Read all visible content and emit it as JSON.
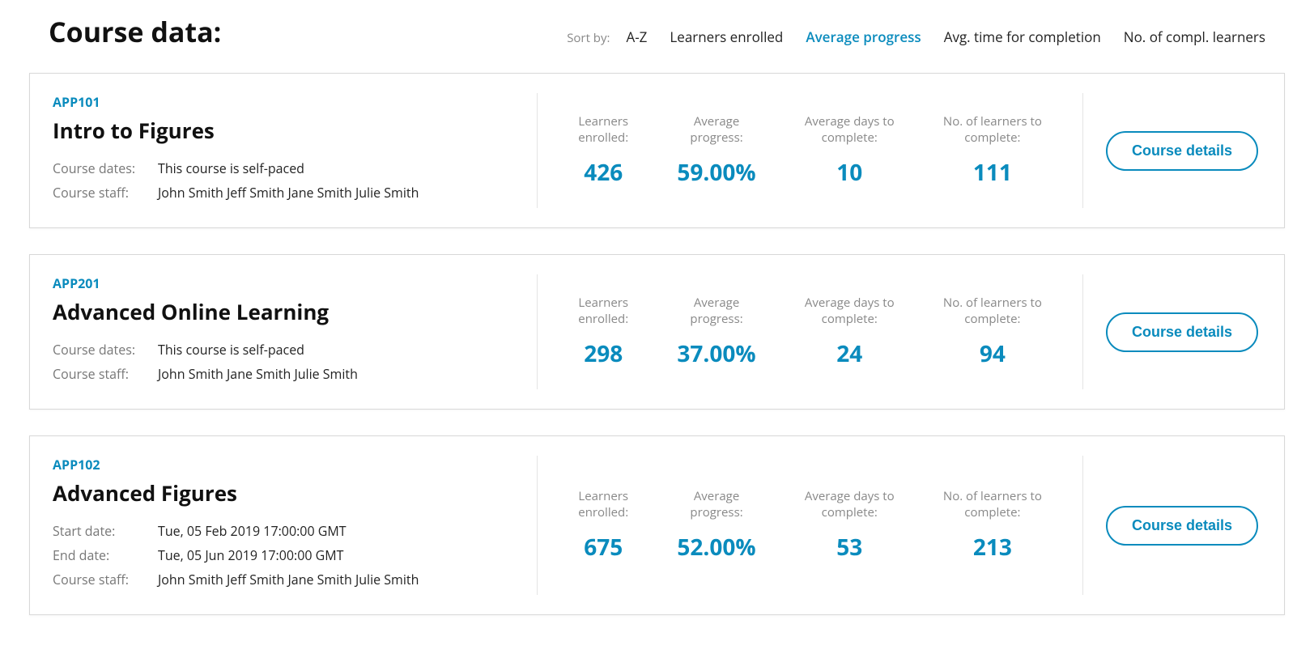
{
  "colors": {
    "accent": "#0a8bbd",
    "text": "#222222",
    "muted": "#888888",
    "border": "#d8d8d8"
  },
  "header": {
    "title": "Course data:",
    "sort_label": "Sort by:",
    "options": [
      {
        "label": "A-Z",
        "active": false
      },
      {
        "label": "Learners enrolled",
        "active": false
      },
      {
        "label": "Average progress",
        "active": true
      },
      {
        "label": "Avg. time for completion",
        "active": false
      },
      {
        "label": "No. of compl. learners",
        "active": false
      }
    ]
  },
  "stat_labels": {
    "enrolled": "Learners\nenrolled:",
    "progress": "Average\nprogress:",
    "days": "Average days to\ncomplete:",
    "completed": "No. of learners to\ncomplete:"
  },
  "meta_labels": {
    "dates": "Course dates:",
    "start": "Start date:",
    "end": "End date:",
    "staff": "Course staff:"
  },
  "button_label": "Course details",
  "courses": [
    {
      "code": "APP101",
      "title": "Intro to Figures",
      "dates_mode": "single",
      "dates_text": "This course is self-paced",
      "start_date": "",
      "end_date": "",
      "staff": "John Smith   Jeff Smith   Jane Smith   Julie Smith",
      "enrolled": "426",
      "progress": "59.00%",
      "days": "10",
      "completed": "111"
    },
    {
      "code": "APP201",
      "title": "Advanced Online Learning",
      "dates_mode": "single",
      "dates_text": "This course is self-paced",
      "start_date": "",
      "end_date": "",
      "staff": "John Smith   Jane Smith   Julie Smith",
      "enrolled": "298",
      "progress": "37.00%",
      "days": "24",
      "completed": "94"
    },
    {
      "code": "APP102",
      "title": "Advanced Figures",
      "dates_mode": "range",
      "dates_text": "",
      "start_date": "Tue, 05 Feb 2019 17:00:00 GMT",
      "end_date": "Tue, 05 Jun 2019 17:00:00 GMT",
      "staff": "John Smith   Jeff Smith   Jane Smith   Julie Smith",
      "enrolled": "675",
      "progress": "52.00%",
      "days": "53",
      "completed": "213"
    }
  ]
}
